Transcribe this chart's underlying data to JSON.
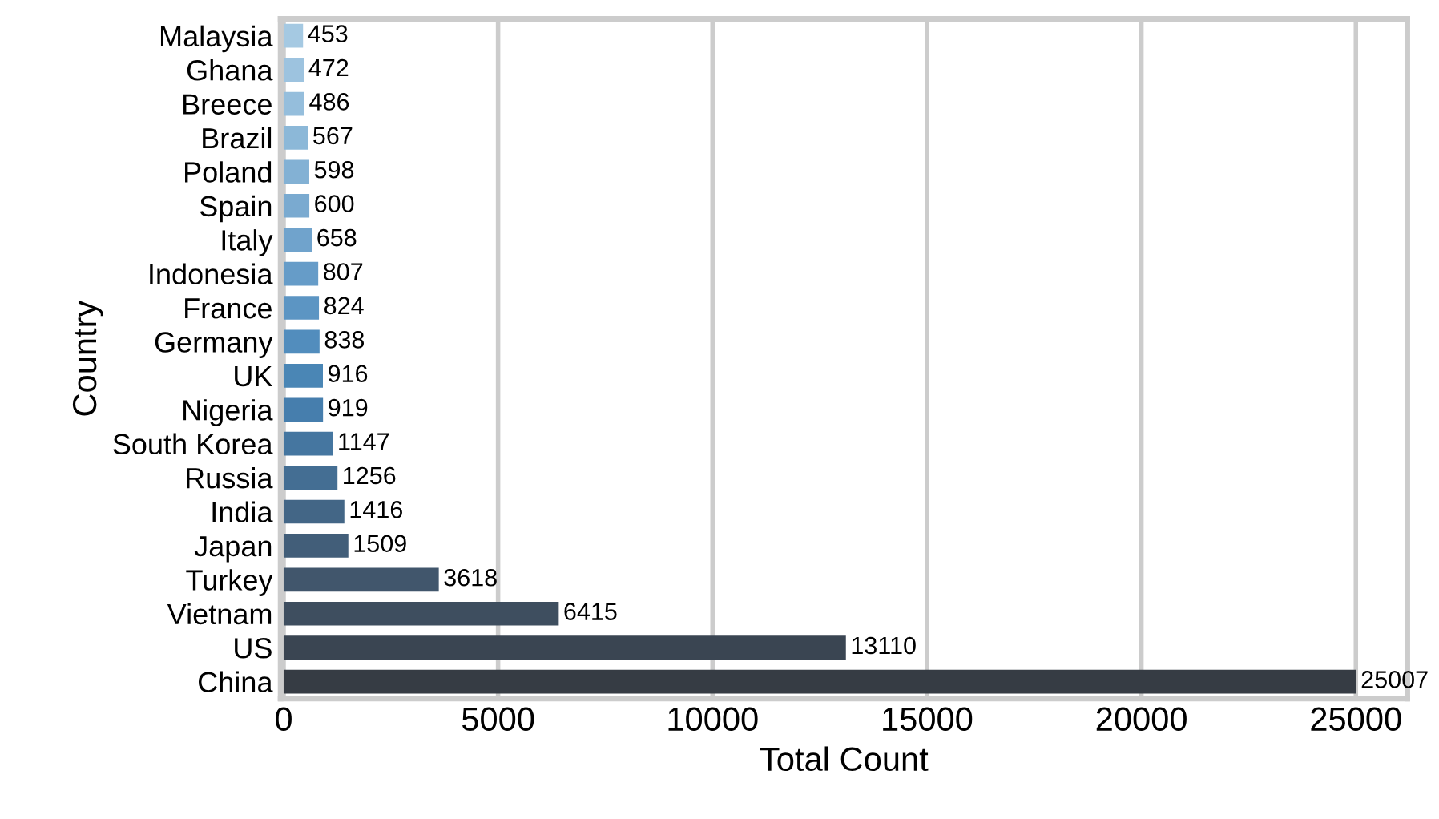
{
  "chart_data": {
    "type": "bar",
    "orientation": "horizontal",
    "xlabel": "Total Count",
    "ylabel": "Country",
    "categories": [
      "Malaysia",
      "Ghana",
      "Breece",
      "Brazil",
      "Poland",
      "Spain",
      "Italy",
      "Indonesia",
      "France",
      "Germany",
      "UK",
      "Nigeria",
      "South Korea",
      "Russia",
      "India",
      "Japan",
      "Turkey",
      "Vietnam",
      "US",
      "China"
    ],
    "values": [
      453,
      472,
      486,
      567,
      598,
      600,
      658,
      807,
      824,
      838,
      916,
      919,
      1147,
      1256,
      1416,
      1509,
      3618,
      6415,
      13110,
      25007
    ],
    "colors": [
      "#a5c9e2",
      "#9dc3df",
      "#95bedc",
      "#8cb8d8",
      "#83b1d4",
      "#7aaad0",
      "#70a3cc",
      "#669cc8",
      "#5c95c3",
      "#528dbd",
      "#4a86b5",
      "#467ead",
      "#4576a0",
      "#446e93",
      "#436686",
      "#425e79",
      "#41566c",
      "#3e4e5f",
      "#3a4552",
      "#363c44"
    ],
    "xlim": [
      -70,
      26200
    ],
    "xticks": [
      0,
      5000,
      10000,
      15000,
      20000,
      25000
    ],
    "grid": "x",
    "data_labels": true
  }
}
